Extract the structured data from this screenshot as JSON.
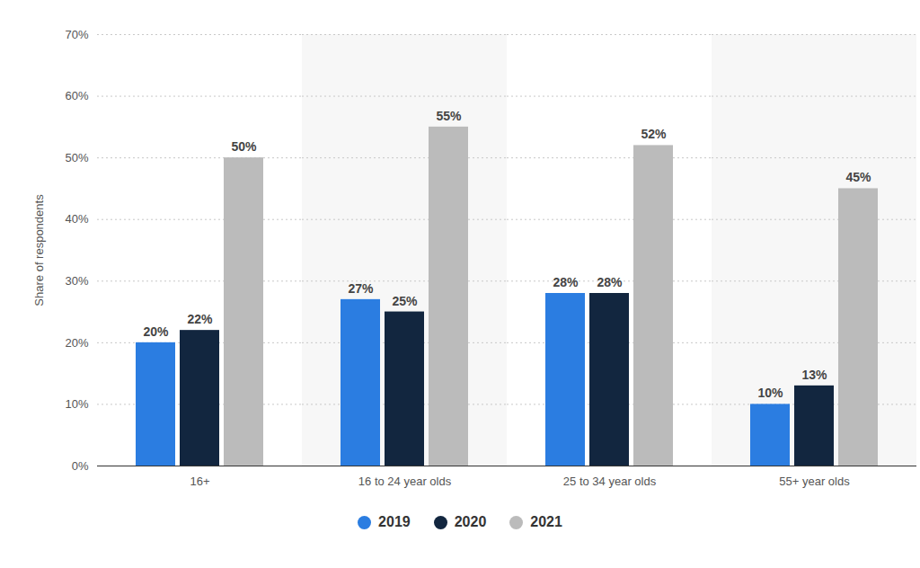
{
  "chart_data": {
    "type": "bar",
    "categories": [
      "16+",
      "16 to 24 year olds",
      "25 to 34 year olds",
      "55+ year olds"
    ],
    "series": [
      {
        "name": "2019",
        "color": "#2b7de1",
        "values": [
          20,
          27,
          28,
          10
        ],
        "value_labels": [
          "20%",
          "27%",
          "28%",
          "10%"
        ]
      },
      {
        "name": "2020",
        "color": "#12263f",
        "values": [
          22,
          25,
          28,
          13
        ],
        "value_labels": [
          "22%",
          "25%",
          "28%",
          "13%"
        ]
      },
      {
        "name": "2021",
        "color": "#bbbbbb",
        "values": [
          50,
          55,
          52,
          45
        ],
        "value_labels": [
          "50%",
          "55%",
          "52%",
          "45%"
        ]
      }
    ],
    "y_label": "Share of respondents",
    "ylim": [
      0,
      70
    ],
    "yticks": [
      {
        "value": 0,
        "label": "0%"
      },
      {
        "value": 10,
        "label": "10%"
      },
      {
        "value": 20,
        "label": "20%"
      },
      {
        "value": 30,
        "label": "30%"
      },
      {
        "value": 40,
        "label": "40%"
      },
      {
        "value": 50,
        "label": "50%"
      },
      {
        "value": 60,
        "label": "60%"
      },
      {
        "value": 70,
        "label": "70%"
      }
    ],
    "grid": true,
    "data_labels": true,
    "legend": "bottom"
  }
}
